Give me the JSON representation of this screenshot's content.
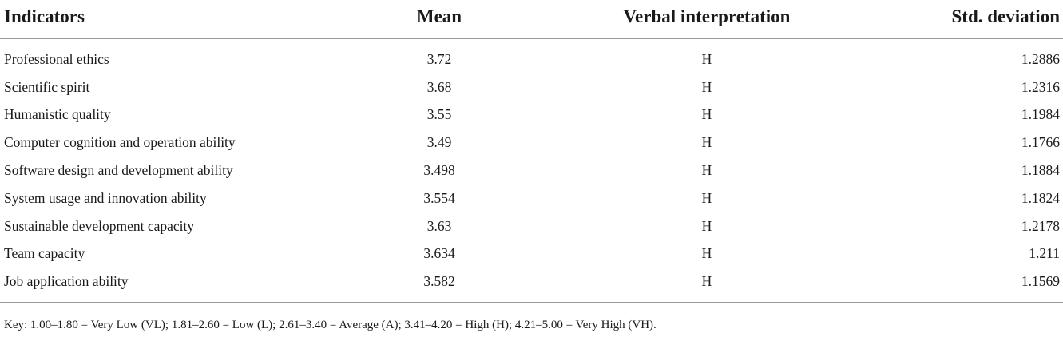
{
  "table": {
    "headers": [
      "Indicators",
      "Mean",
      "Verbal interpretation",
      "Std. deviation"
    ],
    "rows": [
      [
        "Professional ethics",
        "3.72",
        "H",
        "1.2886"
      ],
      [
        "Scientific spirit",
        "3.68",
        "H",
        "1.2316"
      ],
      [
        "Humanistic quality",
        "3.55",
        "H",
        "1.1984"
      ],
      [
        "Computer cognition and operation ability",
        "3.49",
        "H",
        "1.1766"
      ],
      [
        "Software design and development ability",
        "3.498",
        "H",
        "1.1884"
      ],
      [
        "System usage and innovation ability",
        "3.554",
        "H",
        "1.1824"
      ],
      [
        "Sustainable development capacity",
        "3.63",
        "H",
        "1.2178"
      ],
      [
        "Team capacity",
        "3.634",
        "H",
        "1.211"
      ],
      [
        "Job application ability",
        "3.582",
        "H",
        "1.1569"
      ]
    ]
  },
  "footnote": "Key: 1.00–1.80 = Very Low (VL); 1.81–2.60 = Low (L); 2.61–3.40 = Average (A); 3.41–4.20 = High (H); 4.21–5.00 = Very High (VH)."
}
